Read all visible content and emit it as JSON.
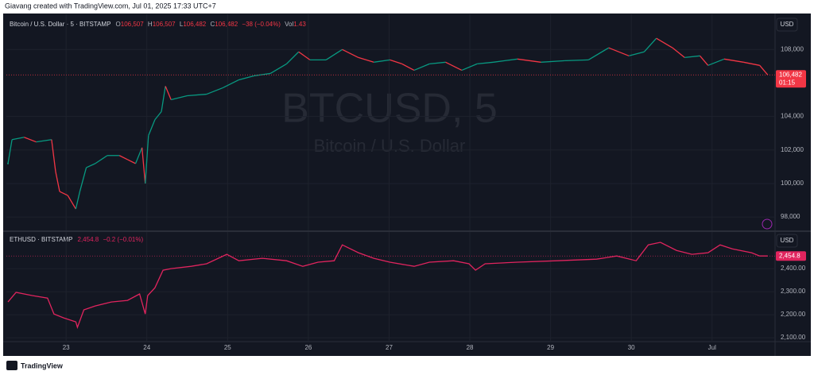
{
  "header": "Giavang created with TradingView.com, Jul 01, 2025 17:33 UTC+7",
  "footer": "TradingView",
  "chart_data": [
    {
      "type": "line",
      "symbol": "Bitcoin / U.S. Dollar · 5 · BITSTAMP",
      "ohlc": [
        {
          "key": "O",
          "value": "106,507"
        },
        {
          "key": "H",
          "value": "106,507"
        },
        {
          "key": "L",
          "value": "106,482"
        },
        {
          "key": "C",
          "value": "106,482"
        }
      ],
      "change": "−38 (−0.04%)",
      "volume_key": "Vol",
      "volume": "1.43",
      "watermark": "BTCUSD, 5",
      "watermark_subtitle": "Bitcoin / U.S. Dollar",
      "currency": "USD",
      "countdown": "01:15",
      "last_price": {
        "value": 106482,
        "label": "106,482"
      },
      "up_color": "#089981",
      "down_color": "#f23645",
      "x": [
        22.28,
        22.33,
        22.48,
        22.63,
        22.82,
        22.87,
        22.92,
        23.02,
        23.12,
        23.17,
        23.25,
        23.36,
        23.51,
        23.66,
        23.76,
        23.86,
        23.94,
        23.98,
        24.02,
        24.1,
        24.18,
        24.23,
        24.3,
        24.5,
        24.74,
        24.94,
        25.14,
        25.33,
        25.53,
        25.73,
        25.88,
        26.02,
        26.22,
        26.42,
        26.62,
        26.81,
        27.01,
        27.16,
        27.31,
        27.5,
        27.7,
        27.9,
        28.09,
        28.29,
        28.59,
        28.88,
        29.18,
        29.47,
        29.72,
        29.97,
        30.16,
        30.31,
        30.51,
        30.66,
        30.85,
        30.95,
        31.15,
        31.39,
        31.59,
        31.69
      ],
      "values": [
        101190,
        102620,
        102760,
        102480,
        102620,
        100710,
        99520,
        99290,
        98480,
        99520,
        100950,
        101190,
        101670,
        101670,
        101430,
        101190,
        102140,
        100000,
        102860,
        103810,
        104290,
        105810,
        105000,
        105240,
        105330,
        105710,
        106190,
        106430,
        106570,
        107140,
        107860,
        107380,
        107380,
        108000,
        107520,
        107240,
        107380,
        107140,
        106760,
        107140,
        107240,
        106760,
        107140,
        107240,
        107430,
        107240,
        107330,
        107380,
        108100,
        107620,
        107860,
        108670,
        108100,
        107520,
        107620,
        107050,
        107430,
        107240,
        107050,
        106482
      ],
      "xlim": [
        22.26,
        31.78
      ],
      "ylim": [
        97200,
        110100
      ],
      "yticks": [
        {
          "value": 98000,
          "label": "98,000"
        },
        {
          "value": 100000,
          "label": "100,000"
        },
        {
          "value": 102000,
          "label": "102,000"
        },
        {
          "value": 104000,
          "label": "104,000"
        },
        {
          "value": 108000,
          "label": "108,000"
        }
      ],
      "grid": true
    },
    {
      "type": "line",
      "symbol": "ETHUSD · BITSTAMP",
      "last": "2,454.8",
      "change": "−0.2 (−0.01%)",
      "currency": "USD",
      "color": "#e0245e",
      "last_price": {
        "value": 2454.8,
        "label": "2,454.8"
      },
      "x": [
        22.28,
        22.38,
        22.58,
        22.77,
        22.85,
        22.97,
        23.12,
        23.14,
        23.22,
        23.36,
        23.56,
        23.76,
        23.91,
        23.98,
        24.01,
        24.1,
        24.2,
        24.3,
        24.55,
        24.74,
        24.99,
        25.14,
        25.43,
        25.73,
        25.93,
        26.12,
        26.32,
        26.42,
        26.62,
        26.81,
        27.01,
        27.31,
        27.5,
        27.8,
        27.99,
        28.07,
        28.19,
        28.59,
        29.08,
        29.57,
        29.82,
        30.06,
        30.21,
        30.36,
        30.56,
        30.75,
        30.95,
        31.1,
        31.25,
        31.49,
        31.59,
        31.69
      ],
      "values": [
        2255,
        2297,
        2283,
        2272,
        2203,
        2186,
        2169,
        2145,
        2221,
        2238,
        2255,
        2262,
        2290,
        2203,
        2283,
        2317,
        2393,
        2400,
        2410,
        2421,
        2462,
        2434,
        2445,
        2434,
        2410,
        2428,
        2434,
        2503,
        2469,
        2445,
        2428,
        2410,
        2428,
        2434,
        2421,
        2393,
        2421,
        2428,
        2434,
        2441,
        2455,
        2434,
        2503,
        2514,
        2479,
        2462,
        2469,
        2503,
        2486,
        2469,
        2455,
        2454.8
      ],
      "xlim": [
        22.26,
        31.78
      ],
      "ylim": [
        2083,
        2559
      ],
      "yticks": [
        {
          "value": 2100,
          "label": "2,100.00"
        },
        {
          "value": 2200,
          "label": "2,200.00"
        },
        {
          "value": 2300,
          "label": "2,300.00"
        },
        {
          "value": 2400,
          "label": "2,400.00"
        }
      ],
      "xticks": [
        23,
        24,
        25,
        26,
        27,
        28,
        29,
        30,
        {
          "value": 31,
          "label": "Jul"
        }
      ],
      "grid": true
    }
  ]
}
